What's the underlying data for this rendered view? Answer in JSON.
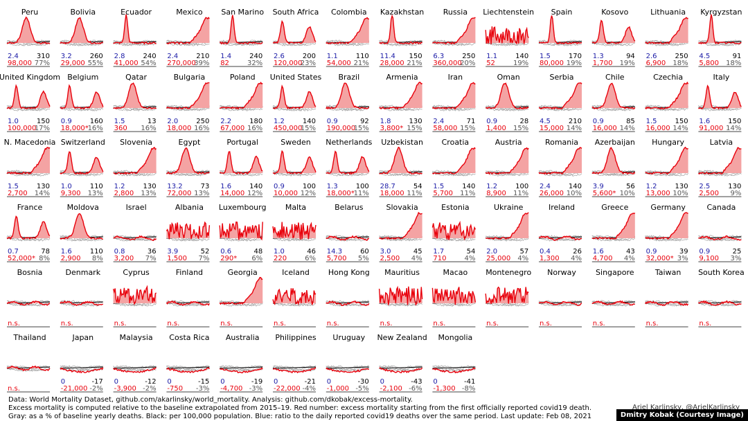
{
  "chart_data": {
    "type": "line",
    "units": {
      "gray_number": "% of baseline yearly deaths",
      "black_number": "excess deaths per 100,000 population",
      "blue_number": "ratio to the daily reported covid19 deaths over the same period",
      "red_number": "excess mortality starting from the first officially reported covid19 death"
    },
    "panels": [
      {
        "country": "Peru",
        "blue": "2.4",
        "black": "310",
        "red": "98,000",
        "gray": "77%",
        "shape": "bump"
      },
      {
        "country": "Bolivia",
        "blue": "3.2",
        "black": "260",
        "red": "29,000",
        "gray": "55%",
        "shape": "bump"
      },
      {
        "country": "Ecuador",
        "blue": "2.8",
        "black": "240",
        "red": "41,000",
        "gray": "54%",
        "shape": "spike"
      },
      {
        "country": "Mexico",
        "blue": "2.4",
        "black": "210",
        "red": "270,000",
        "gray": "39%",
        "shape": "rise"
      },
      {
        "country": "San Marino",
        "blue": "1.4",
        "black": "240",
        "red": "82",
        "gray": "32%",
        "shape": "spike"
      },
      {
        "country": "South Africa",
        "blue": "2.6",
        "black": "200",
        "red": "120,000",
        "gray": "23%",
        "shape": "twin"
      },
      {
        "country": "Colombia",
        "blue": "1.1",
        "black": "110",
        "red": "54,000",
        "gray": "21%",
        "shape": "rise"
      },
      {
        "country": "Kazakhstan",
        "blue": "11.4",
        "black": "150",
        "red": "28,000",
        "gray": "21%",
        "shape": "spike"
      },
      {
        "country": "Russia",
        "blue": "6.3",
        "black": "250",
        "red": "360,000",
        "gray": "20%",
        "shape": "rise"
      },
      {
        "country": "Liechtenstein",
        "blue": "1.1",
        "black": "140",
        "red": "52",
        "gray": "19%",
        "shape": "noisy"
      },
      {
        "country": "Spain",
        "blue": "1.5",
        "black": "170",
        "red": "80,000",
        "gray": "19%",
        "shape": "spike"
      },
      {
        "country": "Kosovo",
        "blue": "1.3",
        "black": "94",
        "red": "1,700",
        "gray": "19%",
        "shape": "twin"
      },
      {
        "country": "Lithuania",
        "blue": "2.6",
        "black": "250",
        "red": "6,900",
        "gray": "18%",
        "shape": "rise"
      },
      {
        "country": "Kyrgyzstan",
        "blue": "4.5",
        "black": "91",
        "red": "5,800",
        "gray": "18%",
        "shape": "spike"
      },
      {
        "country": "United Kingdom",
        "blue": "1.0",
        "black": "150",
        "red": "100,000",
        "gray": "17%",
        "shape": "twin"
      },
      {
        "country": "Belgium",
        "blue": "0.9",
        "black": "160",
        "red": "18,000*",
        "gray": "16%",
        "shape": "twin"
      },
      {
        "country": "Qatar",
        "blue": "1.5",
        "black": "13",
        "red": "360",
        "gray": "16%",
        "shape": "bump"
      },
      {
        "country": "Bulgaria",
        "blue": "2.0",
        "black": "250",
        "red": "18,000",
        "gray": "16%",
        "shape": "rise"
      },
      {
        "country": "Poland",
        "blue": "2.2",
        "black": "180",
        "red": "67,000",
        "gray": "16%",
        "shape": "rise"
      },
      {
        "country": "United States",
        "blue": "1.2",
        "black": "140",
        "red": "450,000",
        "gray": "15%",
        "shape": "twin"
      },
      {
        "country": "Brazil",
        "blue": "0.9",
        "black": "92",
        "red": "190,000",
        "gray": "15%",
        "shape": "bump"
      },
      {
        "country": "Armenia",
        "blue": "1.8",
        "black": "130",
        "red": "3,800*",
        "gray": "15%",
        "shape": "rise"
      },
      {
        "country": "Iran",
        "blue": "2.4",
        "black": "71",
        "red": "58,000",
        "gray": "15%",
        "shape": "rise"
      },
      {
        "country": "Oman",
        "blue": "0.9",
        "black": "28",
        "red": "1,400",
        "gray": "15%",
        "shape": "bump"
      },
      {
        "country": "Serbia",
        "blue": "4.5",
        "black": "210",
        "red": "15,000",
        "gray": "14%",
        "shape": "rise"
      },
      {
        "country": "Chile",
        "blue": "0.9",
        "black": "85",
        "red": "16,000",
        "gray": "14%",
        "shape": "bump"
      },
      {
        "country": "Czechia",
        "blue": "1.5",
        "black": "150",
        "red": "16,000",
        "gray": "14%",
        "shape": "rise"
      },
      {
        "country": "Italy",
        "blue": "1.6",
        "black": "150",
        "red": "91,000",
        "gray": "14%",
        "shape": "twin"
      },
      {
        "country": "N. Macedonia",
        "blue": "1.5",
        "black": "130",
        "red": "2,700",
        "gray": "14%",
        "shape": "rise"
      },
      {
        "country": "Switzerland",
        "blue": "1.0",
        "black": "110",
        "red": "9,300",
        "gray": "13%",
        "shape": "twin"
      },
      {
        "country": "Slovenia",
        "blue": "1.2",
        "black": "130",
        "red": "2,800",
        "gray": "13%",
        "shape": "rise"
      },
      {
        "country": "Egypt",
        "blue": "13.2",
        "black": "73",
        "red": "72,000",
        "gray": "13%",
        "shape": "bump"
      },
      {
        "country": "Portugal",
        "blue": "1.6",
        "black": "140",
        "red": "14,000",
        "gray": "12%",
        "shape": "twin"
      },
      {
        "country": "Sweden",
        "blue": "0.9",
        "black": "100",
        "red": "10,000",
        "gray": "12%",
        "shape": "twin"
      },
      {
        "country": "Netherlands",
        "blue": "1.3",
        "black": "100",
        "red": "18,000*",
        "gray": "11%",
        "shape": "twin"
      },
      {
        "country": "Uzbekistan",
        "blue": "28.7",
        "black": "54",
        "red": "18,000",
        "gray": "11%",
        "shape": "bump"
      },
      {
        "country": "Croatia",
        "blue": "1.5",
        "black": "140",
        "red": "5,700",
        "gray": "11%",
        "shape": "rise"
      },
      {
        "country": "Austria",
        "blue": "1.2",
        "black": "100",
        "red": "8,900",
        "gray": "11%",
        "shape": "rise"
      },
      {
        "country": "Romania",
        "blue": "2.4",
        "black": "140",
        "red": "26,000",
        "gray": "10%",
        "shape": "rise"
      },
      {
        "country": "Azerbaijan",
        "blue": "3.9",
        "black": "56",
        "red": "5,600*",
        "gray": "10%",
        "shape": "bump"
      },
      {
        "country": "Hungary",
        "blue": "1.2",
        "black": "130",
        "red": "13,000",
        "gray": "10%",
        "shape": "rise"
      },
      {
        "country": "Latvia",
        "blue": "2.5",
        "black": "130",
        "red": "2,500",
        "gray": "9%",
        "shape": "rise"
      },
      {
        "country": "France",
        "blue": "0.7",
        "black": "78",
        "red": "52,000*",
        "gray": "8%",
        "shape": "twin"
      },
      {
        "country": "Moldova",
        "blue": "1.6",
        "black": "110",
        "red": "2,900",
        "gray": "8%",
        "shape": "bump"
      },
      {
        "country": "Israel",
        "blue": "0.8",
        "black": "36",
        "red": "3,200",
        "gray": "7%",
        "shape": "flat"
      },
      {
        "country": "Albania",
        "blue": "3.9",
        "black": "52",
        "red": "1,500",
        "gray": "7%",
        "shape": "noisy"
      },
      {
        "country": "Luxembourg",
        "blue": "0.6",
        "black": "48",
        "red": "290*",
        "gray": "6%",
        "shape": "noisy"
      },
      {
        "country": "Malta",
        "blue": "1.0",
        "black": "46",
        "red": "220",
        "gray": "6%",
        "shape": "noisy"
      },
      {
        "country": "Belarus",
        "blue": "14.3",
        "black": "60",
        "red": "5,700",
        "gray": "5%",
        "shape": "flat"
      },
      {
        "country": "Slovakia",
        "blue": "3.0",
        "black": "45",
        "red": "2,500",
        "gray": "4%",
        "shape": "rise"
      },
      {
        "country": "Estonia",
        "blue": "1.7",
        "black": "54",
        "red": "710",
        "gray": "4%",
        "shape": "noisy"
      },
      {
        "country": "Ukraine",
        "blue": "2.0",
        "black": "57",
        "red": "25,000",
        "gray": "4%",
        "shape": "rise"
      },
      {
        "country": "Ireland",
        "blue": "0.4",
        "black": "26",
        "red": "1,300",
        "gray": "4%",
        "shape": "flat"
      },
      {
        "country": "Greece",
        "blue": "1.6",
        "black": "43",
        "red": "4,700",
        "gray": "4%",
        "shape": "rise"
      },
      {
        "country": "Germany",
        "blue": "0.9",
        "black": "39",
        "red": "32,000*",
        "gray": "3%",
        "shape": "rise"
      },
      {
        "country": "Canada",
        "blue": "0.9",
        "black": "25",
        "red": "9,100",
        "gray": "3%",
        "shape": "flat"
      },
      {
        "country": "Bosnia",
        "blue": "",
        "black": "",
        "red": "n.s.",
        "gray": "",
        "shape": "flat"
      },
      {
        "country": "Denmark",
        "blue": "",
        "black": "",
        "red": "n.s.",
        "gray": "",
        "shape": "flat"
      },
      {
        "country": "Cyprus",
        "blue": "",
        "black": "",
        "red": "n.s.",
        "gray": "",
        "shape": "noisy"
      },
      {
        "country": "Finland",
        "blue": "",
        "black": "",
        "red": "n.s.",
        "gray": "",
        "shape": "flat"
      },
      {
        "country": "Georgia",
        "blue": "",
        "black": "",
        "red": "n.s.",
        "gray": "",
        "shape": "rise"
      },
      {
        "country": "Iceland",
        "blue": "",
        "black": "",
        "red": "n.s.",
        "gray": "",
        "shape": "noisy"
      },
      {
        "country": "Hong Kong",
        "blue": "",
        "black": "",
        "red": "n.s.",
        "gray": "",
        "shape": "flat"
      },
      {
        "country": "Mauritius",
        "blue": "",
        "black": "",
        "red": "n.s.",
        "gray": "",
        "shape": "noisy"
      },
      {
        "country": "Macao",
        "blue": "",
        "black": "",
        "red": "n.s.",
        "gray": "",
        "shape": "noisy"
      },
      {
        "country": "Montenegro",
        "blue": "",
        "black": "",
        "red": "n.s.",
        "gray": "",
        "shape": "noisy"
      },
      {
        "country": "Norway",
        "blue": "",
        "black": "",
        "red": "n.s.",
        "gray": "",
        "shape": "flat"
      },
      {
        "country": "Singapore",
        "blue": "",
        "black": "",
        "red": "n.s.",
        "gray": "",
        "shape": "flat"
      },
      {
        "country": "Taiwan",
        "blue": "",
        "black": "",
        "red": "n.s.",
        "gray": "",
        "shape": "flat"
      },
      {
        "country": "South Korea",
        "blue": "",
        "black": "",
        "red": "n.s.",
        "gray": "",
        "shape": "flat"
      },
      {
        "country": "Thailand",
        "blue": "",
        "black": "",
        "red": "n.s.",
        "gray": "",
        "shape": "flat"
      },
      {
        "country": "Japan",
        "blue": "0",
        "black": "-17",
        "red": "-21,000",
        "gray": "-2%",
        "shape": "dip"
      },
      {
        "country": "Malaysia",
        "blue": "0",
        "black": "-12",
        "red": "-3,900",
        "gray": "-2%",
        "shape": "dip"
      },
      {
        "country": "Costa Rica",
        "blue": "0",
        "black": "-15",
        "red": "-750",
        "gray": "-3%",
        "shape": "dip"
      },
      {
        "country": "Australia",
        "blue": "0",
        "black": "-19",
        "red": "-4,700",
        "gray": "-3%",
        "shape": "dip"
      },
      {
        "country": "Philippines",
        "blue": "0",
        "black": "-21",
        "red": "-22,000",
        "gray": "-4%",
        "shape": "dip"
      },
      {
        "country": "Uruguay",
        "blue": "0",
        "black": "-30",
        "red": "-1,000",
        "gray": "-5%",
        "shape": "dip"
      },
      {
        "country": "New Zealand",
        "blue": "0",
        "black": "-43",
        "red": "-2,100",
        "gray": "-6%",
        "shape": "dip"
      },
      {
        "country": "Mongolia",
        "blue": "0",
        "black": "-41",
        "red": "-1,300",
        "gray": "-8%",
        "shape": "dip"
      }
    ]
  },
  "footer": {
    "line1": "Data: World Mortality Dataset, github.com/akarlinsky/world_mortality. Analysis: github.com/dkobak/excess-mortality.",
    "line2": "Excess mortality is computed relative to the baseline extrapolated from 2015–19. Red number: excess mortality starting from the first officially reported covid19 death.",
    "line3": "Gray: as a % of baseline yearly deaths. Black: per 100,000 population. Blue: ratio to the daily reported covid19 deaths over the same period. Last update: Feb 08, 2021",
    "author": "Ariel Karlinsky, @ArielKarlinsky",
    "photo_credit": "Dmitry Kobak (Courtesy Image)"
  },
  "colors": {
    "red": "#e8000b",
    "fill": "#f4a3a3",
    "gray": "#aaaaaa",
    "black": "#000000",
    "blue": "#1a1aa6",
    "magenta": "#c000c0"
  }
}
